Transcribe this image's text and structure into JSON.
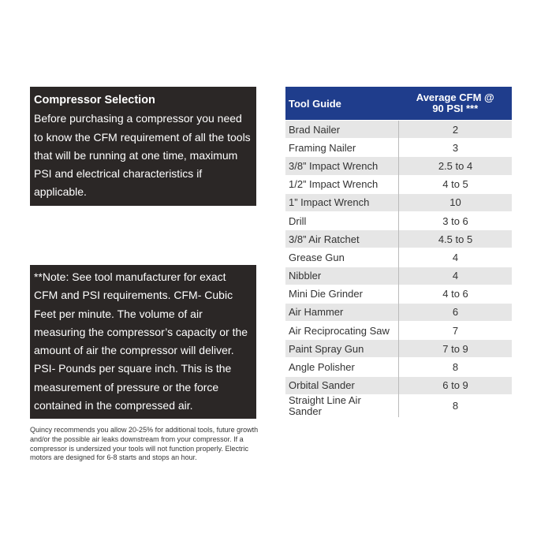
{
  "selection": {
    "title": "Compressor Selection",
    "text": "Before purchasing a compressor you need to know the CFM requirement of all the tools that will be running at one time, maximum PSI and electrical characteristics if applicable."
  },
  "note": {
    "text": "**Note: See tool manufacturer for exact CFM and PSI requirements. CFM- Cubic Feet per minute. The volume of air measuring the compressor’s capacity or the amount of air the compressor will deliver. PSI- Pounds per square inch. This is the measurement of pressure or the force contained in the compressed air."
  },
  "footnote": "Quincy recommends you allow 20-25% for additional tools, future growth and/or the possible air leaks downstream from your compressor. If a compressor is undersized your tools will not function properly. Electric motors are designed for 6-8 starts and stops an hour.",
  "table": {
    "header": [
      "Tool Guide",
      "Average CFM @ 90 PSI ***"
    ],
    "rows": [
      [
        "Brad Nailer",
        2
      ],
      [
        "Framing Nailer",
        3
      ],
      [
        "3/8” Impact Wrench",
        "2.5 to 4"
      ],
      [
        "1/2” Impact Wrench",
        "4 to 5"
      ],
      [
        "1” Impact Wrench",
        10
      ],
      [
        "Drill",
        "3 to 6"
      ],
      [
        "3/8” Air Ratchet",
        "4.5 to 5"
      ],
      [
        "Grease Gun",
        4
      ],
      [
        "Nibbler",
        4
      ],
      [
        "Mini Die Grinder",
        "4 to 6"
      ],
      [
        "Air Hammer",
        6
      ],
      [
        "Air Reciprocating Saw",
        7
      ],
      [
        "Paint Spray Gun",
        "7 to 9"
      ],
      [
        "Angle Polisher",
        8
      ],
      [
        "Orbital Sander",
        "6 to 9"
      ],
      [
        "Straight Line Air Sander",
        8
      ]
    ]
  }
}
